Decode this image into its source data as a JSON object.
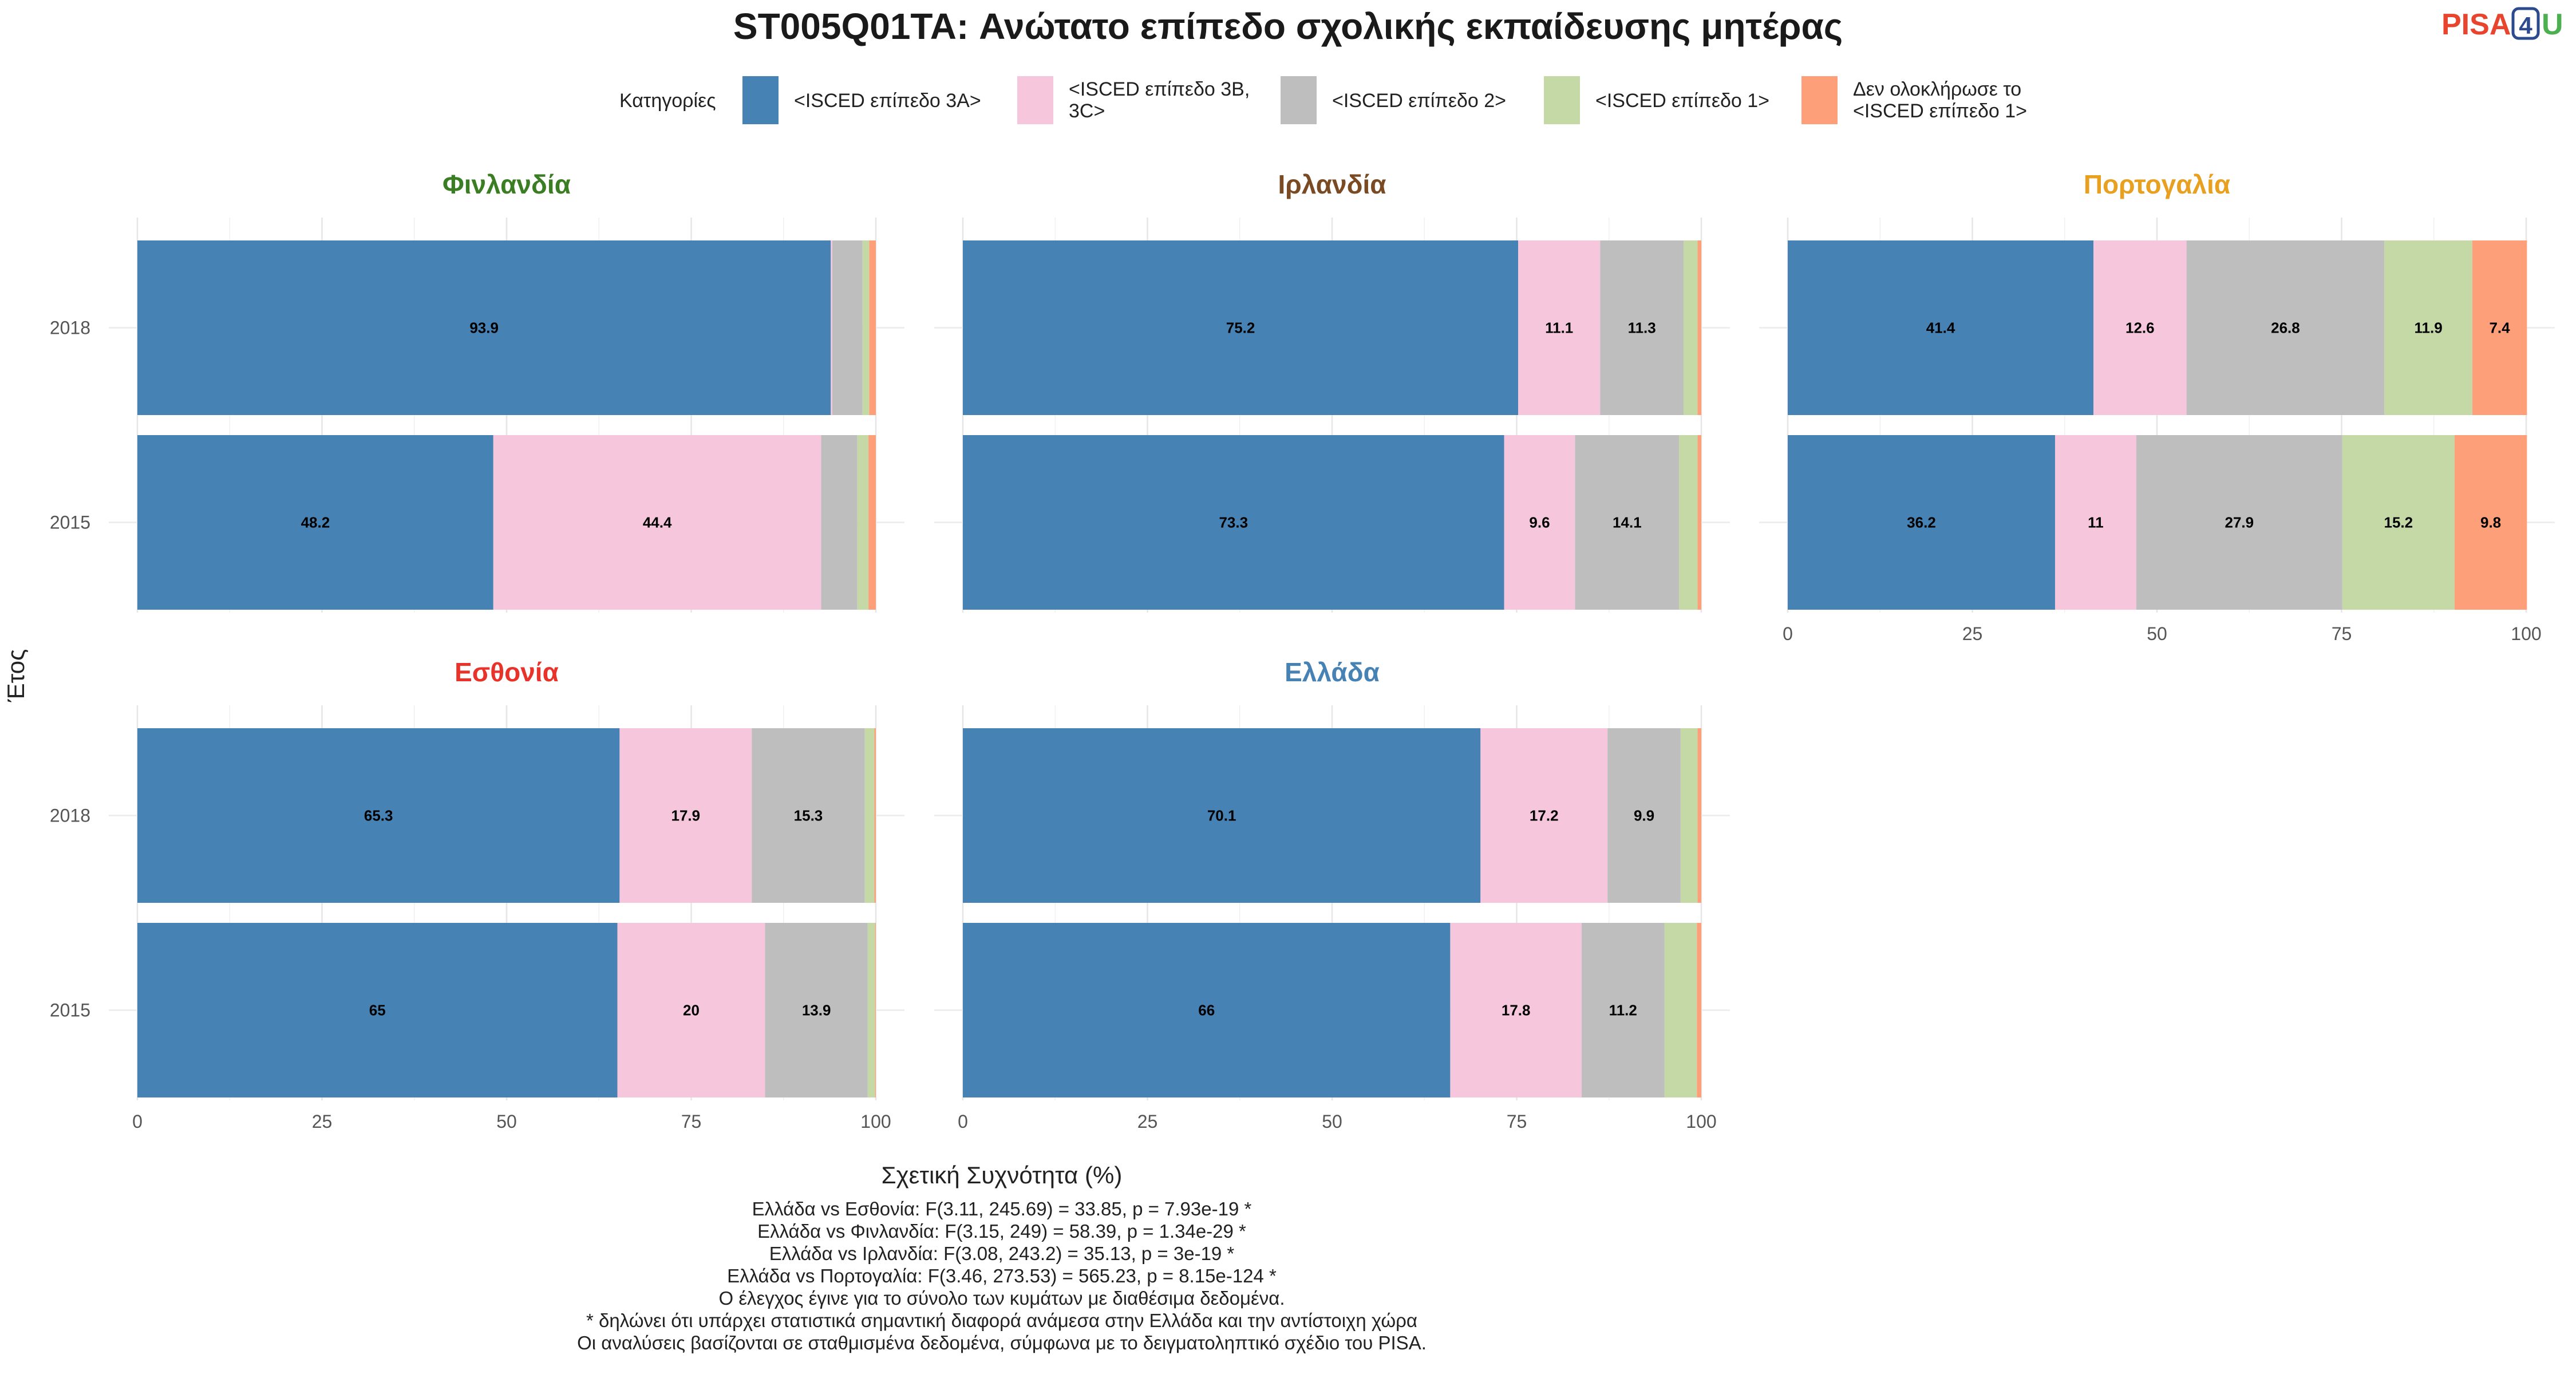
{
  "title": "ST005Q01TA: Ανώτατο επίπεδο σχολικής εκπαίδευσης μητέρας",
  "logo": {
    "text_a": "PISA",
    "text_b": "4",
    "text_c": "U",
    "color_a": "#e8452f",
    "color_b": "#2c4b8f",
    "color_c": "#4caf50"
  },
  "legend": {
    "title": "Κατηγορίες",
    "items": [
      {
        "label_lines": [
          "<ISCED επίπεδο 3A>"
        ],
        "color": "#4682b4"
      },
      {
        "label_lines": [
          "<ISCED επίπεδο 3B,",
          "3C>"
        ],
        "color": "#f6c6dd"
      },
      {
        "label_lines": [
          "<ISCED επίπεδο 2>"
        ],
        "color": "#bebebe"
      },
      {
        "label_lines": [
          "<ISCED επίπεδο 1>"
        ],
        "color": "#c4d9a6"
      },
      {
        "label_lines": [
          "Δεν ολοκλήρωσε το",
          "<ISCED επίπεδο 1>"
        ],
        "color": "#fda07a"
      }
    ]
  },
  "axes": {
    "xlabel": "Σχετική Συχνότητα (%)",
    "ylabel": "Έτος",
    "xticks": [
      "0",
      "25",
      "50",
      "75",
      "100"
    ]
  },
  "chart_data": {
    "type": "bar",
    "orientation": "horizontal",
    "stacked": true,
    "xlim": [
      0,
      100
    ],
    "categories": [
      "2018",
      "2015"
    ],
    "series_names": [
      "<ISCED επίπεδο 3A>",
      "<ISCED επίπεδο 3B, 3C>",
      "<ISCED επίπεδο 2>",
      "<ISCED επίπεδο 1>",
      "Δεν ολοκλήρωσε το <ISCED επίπεδο 1>"
    ],
    "panels": [
      {
        "name": "Φινλανδία",
        "color": "#3a7d22",
        "bars": [
          {
            "year": "2018",
            "values": [
              93.9,
              0.2,
              4.1,
              0.9,
              0.9
            ],
            "labels": [
              "93.9",
              "",
              "",
              "",
              ""
            ]
          },
          {
            "year": "2015",
            "values": [
              48.2,
              44.4,
              4.9,
              1.5,
              1.0
            ],
            "labels": [
              "48.2",
              "44.4",
              "",
              "",
              ""
            ]
          }
        ]
      },
      {
        "name": "Ιρλανδία",
        "color": "#7a4a22",
        "bars": [
          {
            "year": "2018",
            "values": [
              75.2,
              11.1,
              11.3,
              1.9,
              0.5
            ],
            "labels": [
              "75.2",
              "11.1",
              "11.3",
              "",
              ""
            ]
          },
          {
            "year": "2015",
            "values": [
              73.3,
              9.6,
              14.1,
              2.5,
              0.5
            ],
            "labels": [
              "73.3",
              "9.6",
              "14.1",
              "",
              ""
            ]
          }
        ]
      },
      {
        "name": "Πορτογαλία",
        "color": "#e8a020",
        "bars": [
          {
            "year": "2018",
            "values": [
              41.4,
              12.6,
              26.8,
              11.9,
              7.4
            ],
            "labels": [
              "41.4",
              "12.6",
              "26.8",
              "11.9",
              "7.4"
            ]
          },
          {
            "year": "2015",
            "values": [
              36.2,
              11.0,
              27.9,
              15.2,
              9.8
            ],
            "labels": [
              "36.2",
              "11",
              "27.9",
              "15.2",
              "9.8"
            ]
          }
        ]
      },
      {
        "name": "Εσθονία",
        "color": "#e8332a",
        "bars": [
          {
            "year": "2018",
            "values": [
              65.3,
              17.9,
              15.3,
              1.3,
              0.2
            ],
            "labels": [
              "65.3",
              "17.9",
              "15.3",
              "",
              ""
            ]
          },
          {
            "year": "2015",
            "values": [
              65.0,
              20.0,
              13.9,
              1.0,
              0.1
            ],
            "labels": [
              "65",
              "20",
              "13.9",
              "",
              ""
            ]
          }
        ]
      },
      {
        "name": "Ελλάδα",
        "color": "#4682b4",
        "bars": [
          {
            "year": "2018",
            "values": [
              70.1,
              17.2,
              9.9,
              2.3,
              0.5
            ],
            "labels": [
              "70.1",
              "17.2",
              "9.9",
              "",
              ""
            ]
          },
          {
            "year": "2015",
            "values": [
              66.0,
              17.8,
              11.2,
              4.4,
              0.6
            ],
            "labels": [
              "66",
              "17.8",
              "11.2",
              "",
              ""
            ]
          }
        ]
      }
    ]
  },
  "notes": [
    "Ελλάδα vs Εσθονία: F(3.11, 245.69) = 33.85, p = 7.93e-19 *",
    "Ελλάδα vs Φινλανδία: F(3.15, 249) = 58.39, p = 1.34e-29 *",
    "Ελλάδα vs Ιρλανδία: F(3.08, 243.2) = 35.13, p = 3e-19 *",
    "Ελλάδα vs Πορτογαλία: F(3.46, 273.53) = 565.23, p = 8.15e-124 *",
    "Ο έλεγχος έγινε για το σύνολο των κυμάτων με διαθέσιμα δεδομένα.",
    "* δηλώνει ότι υπάρχει στατιστικά σημαντική διαφορά ανάμεσα στην Ελλάδα και την αντίστοιχη χώρα",
    "Οι αναλύσεις βασίζονται σε σταθμισμένα δεδομένα, σύμφωνα με το δειγματοληπτικό σχέδιο του PISA."
  ]
}
